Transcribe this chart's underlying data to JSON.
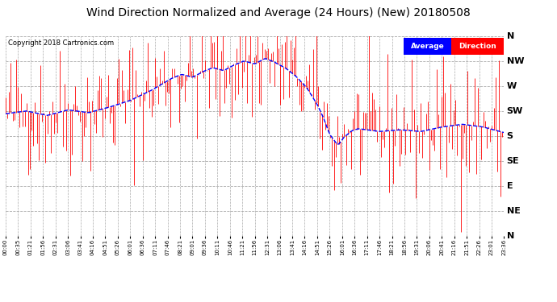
{
  "title": "Wind Direction Normalized and Average (24 Hours) (New) 20180508",
  "copyright": "Copyright 2018 Cartronics.com",
  "y_labels": [
    "N",
    "NW",
    "W",
    "SW",
    "S",
    "SE",
    "E",
    "NE",
    "N"
  ],
  "y_values": [
    360,
    315,
    270,
    225,
    180,
    135,
    90,
    45,
    0
  ],
  "x_ticks": [
    "00:00",
    "00:35",
    "01:21",
    "01:56",
    "02:31",
    "03:06",
    "03:41",
    "04:16",
    "04:51",
    "05:26",
    "06:01",
    "06:36",
    "07:11",
    "07:46",
    "08:21",
    "09:01",
    "09:36",
    "10:11",
    "10:46",
    "11:21",
    "11:56",
    "12:31",
    "13:06",
    "13:41",
    "14:16",
    "14:51",
    "15:26",
    "16:01",
    "16:36",
    "17:11",
    "17:46",
    "18:21",
    "18:56",
    "19:31",
    "20:06",
    "20:41",
    "21:16",
    "21:51",
    "22:26",
    "23:01",
    "23:36"
  ],
  "bg_color": "#ffffff",
  "grid_color": "#aaaaaa",
  "red_color": "#ff0000",
  "blue_color": "#0000ff",
  "title_fontsize": 10,
  "legend_avg_color": "#0000ff",
  "legend_dir_color": "#ff0000"
}
